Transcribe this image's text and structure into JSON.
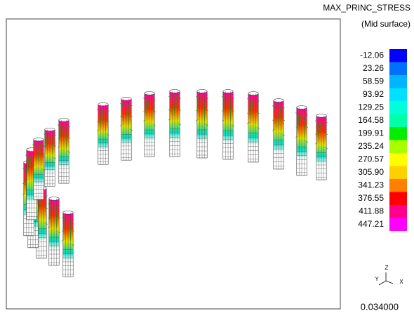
{
  "header": {
    "title": "MAX_PRINC_STRESS",
    "subtitle": "(Mid surface)"
  },
  "legend": {
    "entries": [
      {
        "label": "-12.06",
        "color": "#0000ff"
      },
      {
        "label": "23.26",
        "color": "#0070ff"
      },
      {
        "label": "58.59",
        "color": "#00b4ff"
      },
      {
        "label": "93.92",
        "color": "#00e0ff"
      },
      {
        "label": "129.25",
        "color": "#00ffd8"
      },
      {
        "label": "164.58",
        "color": "#00ffa8"
      },
      {
        "label": "199.91",
        "color": "#00ee00"
      },
      {
        "label": "235.24",
        "color": "#a8ff00"
      },
      {
        "label": "270.57",
        "color": "#ffff00"
      },
      {
        "label": "305.90",
        "color": "#ffd000"
      },
      {
        "label": "341.23",
        "color": "#ff8000"
      },
      {
        "label": "376.55",
        "color": "#ff0000"
      },
      {
        "label": "411.88",
        "color": "#ff0088"
      },
      {
        "label": "447.21",
        "color": "#ff00ff"
      }
    ]
  },
  "triad": {
    "z": "Z",
    "y": "Y",
    "x": "X"
  },
  "footer": {
    "value": "0.034000"
  }
}
